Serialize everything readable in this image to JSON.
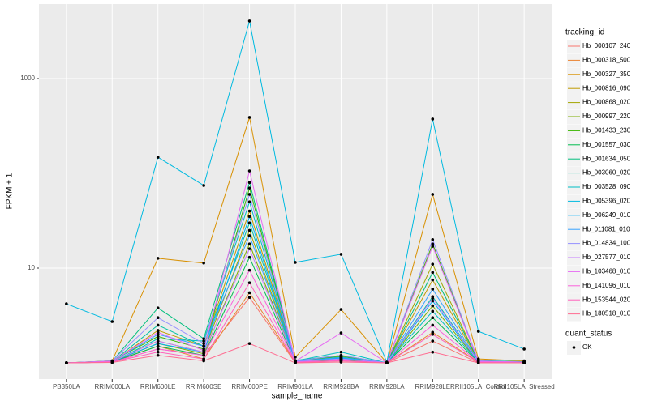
{
  "chart_data": {
    "type": "line",
    "x_label": "sample_name",
    "y_label": "FPKM + 1",
    "log_y": true,
    "grid": true,
    "legend_title": "tracking_id",
    "point_legend_title": "quant_status",
    "point_legend_label": "OK",
    "point_color": "#000000",
    "categories": [
      "PB350LA",
      "RRIM600LA",
      "RRIM600LE",
      "RRIM600SE",
      "RRIM600PE",
      "RRIM901LA",
      "RRIM928BA",
      "RRIM928LA",
      "RRIM928LE",
      "RRII105LA_Control",
      "RRII105LA_Stressed"
    ],
    "ylim": [
      0.675,
      6110
    ],
    "yticks": [
      10,
      1000
    ],
    "series": [
      {
        "name": "Hb_000107_240",
        "color": "#F8766D",
        "values": [
          1.0,
          1.02,
          1.4,
          1.2,
          4.9,
          1.0,
          1.05,
          1.0,
          1.7,
          1.0,
          1.0
        ]
      },
      {
        "name": "Hb_000318_500",
        "color": "#EA8331",
        "values": [
          1.0,
          1.03,
          1.5,
          1.1,
          5.5,
          1.02,
          1.1,
          1.0,
          2.1,
          1.02,
          1.0
        ]
      },
      {
        "name": "Hb_000327_350",
        "color": "#D89000",
        "values": [
          1.0,
          1.05,
          12.7,
          11.3,
          389,
          1.15,
          3.66,
          1.0,
          60,
          1.1,
          1.05
        ]
      },
      {
        "name": "Hb_000816_090",
        "color": "#C09B00",
        "values": [
          1.0,
          1.03,
          2.2,
          1.5,
          40,
          1.05,
          1.15,
          1.0,
          7.5,
          1.05,
          1.02
        ]
      },
      {
        "name": "Hb_000868_020",
        "color": "#A3A500",
        "values": [
          1.0,
          1.04,
          1.7,
          1.3,
          25,
          1.03,
          1.12,
          1.0,
          11,
          1.04,
          1.02
        ]
      },
      {
        "name": "Hb_000997_220",
        "color": "#7CAE00",
        "values": [
          1.0,
          1.03,
          1.6,
          1.25,
          18,
          1.02,
          1.1,
          1.0,
          4.0,
          1.03,
          1.0
        ]
      },
      {
        "name": "Hb_001433_230",
        "color": "#39B600",
        "values": [
          1.0,
          1.05,
          1.9,
          1.4,
          70,
          1.04,
          1.18,
          1.0,
          18,
          1.05,
          1.02
        ]
      },
      {
        "name": "Hb_001557_030",
        "color": "#00BB4E",
        "values": [
          1.0,
          1.02,
          1.5,
          1.2,
          13,
          1.02,
          1.08,
          1.0,
          3.0,
          1.02,
          1.0
        ]
      },
      {
        "name": "Hb_001634_050",
        "color": "#00BF7D",
        "values": [
          1.0,
          1.04,
          3.8,
          1.8,
          80,
          1.06,
          1.2,
          1.0,
          9,
          1.06,
          1.03
        ]
      },
      {
        "name": "Hb_003060_020",
        "color": "#00C1A3",
        "values": [
          1.0,
          1.03,
          2.5,
          1.5,
          30,
          1.04,
          1.15,
          1.0,
          5,
          1.04,
          1.02
        ]
      },
      {
        "name": "Hb_003528_090",
        "color": "#00BFC4",
        "values": [
          1.0,
          1.02,
          1.8,
          1.7,
          50,
          1.05,
          1.3,
          1.0,
          3.5,
          1.03,
          1.0
        ]
      },
      {
        "name": "Hb_005396_020",
        "color": "#00BAE0",
        "values": [
          4.2,
          2.73,
          148,
          74.5,
          4050,
          11.5,
          14,
          1.02,
          374,
          2.15,
          1.4
        ]
      },
      {
        "name": "Hb_006249_010",
        "color": "#00B0F6",
        "values": [
          1.0,
          1.03,
          1.6,
          1.3,
          35,
          1.03,
          1.12,
          1.0,
          4.5,
          1.03,
          1.0
        ]
      },
      {
        "name": "Hb_011081_010",
        "color": "#35A2FF",
        "values": [
          1.0,
          1.04,
          2.0,
          1.5,
          22,
          1.04,
          1.14,
          1.0,
          6,
          1.04,
          1.02
        ]
      },
      {
        "name": "Hb_014834_100",
        "color": "#9590FF",
        "values": [
          1.0,
          1.05,
          3.0,
          1.6,
          60,
          1.05,
          1.2,
          1.0,
          20,
          1.05,
          1.02
        ]
      },
      {
        "name": "Hb_027577_010",
        "color": "#C77CFF",
        "values": [
          1.0,
          1.03,
          1.7,
          1.3,
          16,
          1.03,
          1.1,
          1.0,
          4.8,
          1.03,
          1.0
        ]
      },
      {
        "name": "Hb_103468_010",
        "color": "#E76BF3",
        "values": [
          1.0,
          1.04,
          2.1,
          1.35,
          106,
          1.04,
          2.07,
          1.0,
          17,
          1.04,
          1.02
        ]
      },
      {
        "name": "Hb_141096_010",
        "color": "#FA62DB",
        "values": [
          1.0,
          1.02,
          1.4,
          1.2,
          9.5,
          1.02,
          1.06,
          1.0,
          2.5,
          1.02,
          1.0
        ]
      },
      {
        "name": "Hb_153544_020",
        "color": "#FF62BC",
        "values": [
          1.0,
          1.02,
          1.3,
          1.1,
          7.0,
          1.01,
          1.05,
          1.0,
          2.0,
          1.01,
          1.0
        ]
      },
      {
        "name": "Hb_180518_010",
        "color": "#FF6C91",
        "values": [
          1.0,
          1.01,
          1.2,
          1.05,
          1.6,
          1.0,
          1.02,
          1.0,
          1.3,
          1.0,
          1.0
        ]
      }
    ]
  }
}
